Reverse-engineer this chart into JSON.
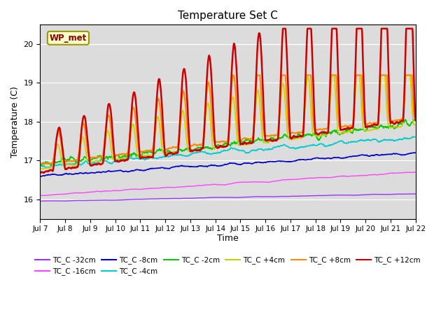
{
  "title": "Temperature Set C",
  "xlabel": "Time",
  "ylabel": "Temperature (C)",
  "ylim": [
    15.5,
    20.5
  ],
  "bg_color": "#dcdcdc",
  "annotation_text": "WP_met",
  "annotation_bg": "#ffffcc",
  "annotation_border": "#999900",
  "annotation_text_color": "#8b0000",
  "series": {
    "TC_C -32cm": {
      "color": "#9933ff",
      "lw": 1.0
    },
    "TC_C -16cm": {
      "color": "#ff44ff",
      "lw": 1.0
    },
    "TC_C -8cm": {
      "color": "#0000cc",
      "lw": 1.2
    },
    "TC_C -4cm": {
      "color": "#00cccc",
      "lw": 1.2
    },
    "TC_C -2cm": {
      "color": "#00cc00",
      "lw": 1.2
    },
    "TC_C +4cm": {
      "color": "#cccc00",
      "lw": 1.2
    },
    "TC_C +8cm": {
      "color": "#ff8800",
      "lw": 1.5
    },
    "TC_C +12cm": {
      "color": "#cc0000",
      "lw": 1.8
    }
  },
  "legend_order": [
    "TC_C -32cm",
    "TC_C -16cm",
    "TC_C -8cm",
    "TC_C -4cm",
    "TC_C -2cm",
    "TC_C +4cm",
    "TC_C +8cm",
    "TC_C +12cm"
  ],
  "x_ticks_labels": [
    "Jul 7",
    "Jul 8",
    "Jul 9",
    "Jul 10",
    "Jul 11",
    "Jul 12",
    "Jul 13",
    "Jul 14",
    "Jul 15",
    "Jul 16",
    "Jul 17",
    "Jul 18",
    "Jul 19",
    "Jul 20",
    "Jul 21",
    "Jul 22"
  ],
  "n_points": 1440
}
